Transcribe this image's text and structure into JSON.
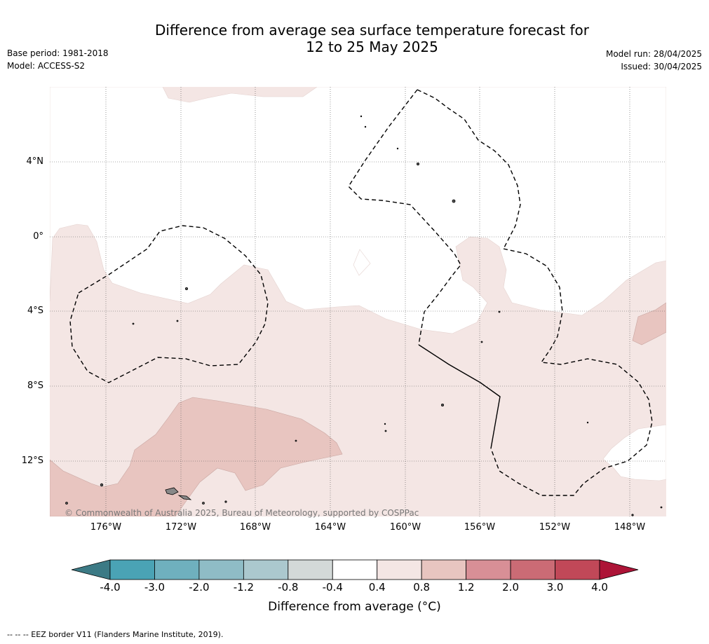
{
  "title_line1": "Difference from average sea surface temperature forecast for",
  "title_line2": "12 to 25 May 2025",
  "left_meta": [
    "Base period: 1981-2018",
    "Model: ACCESS-S2"
  ],
  "right_meta": [
    "Model run: 28/04/2025",
    "Issued: 30/04/2025"
  ],
  "lat_labels": [
    "4°N",
    "0°",
    "4°S",
    "8°S",
    "12°S"
  ],
  "lon_labels": [
    "176°W",
    "172°W",
    "168°W",
    "164°W",
    "160°W",
    "156°W",
    "152°W",
    "148°W"
  ],
  "copyright": "© Commonwealth of Australia 2025, Bureau of Meteorology, supported by COSPPac",
  "colorbar": {
    "ticks": [
      "-4.0",
      "-3.0",
      "-2.0",
      "-1.2",
      "-0.8",
      "-0.4",
      "0.4",
      "0.8",
      "1.2",
      "2.0",
      "3.0",
      "4.0"
    ],
    "colors": [
      "#4aa3b5",
      "#6fb0be",
      "#8fbcc6",
      "#abc8ce",
      "#d3d9d8",
      "#ffffff",
      "#f4e6e4",
      "#e8c5c0",
      "#d88f96",
      "#cb6b75",
      "#c14858"
    ],
    "low_color": "#3c7a85",
    "high_color": "#ad1437",
    "label": "Difference from average (°C)"
  },
  "footnote": "--  --  -- EEZ border V11 (Flanders Marine Institute, 2019)."
}
